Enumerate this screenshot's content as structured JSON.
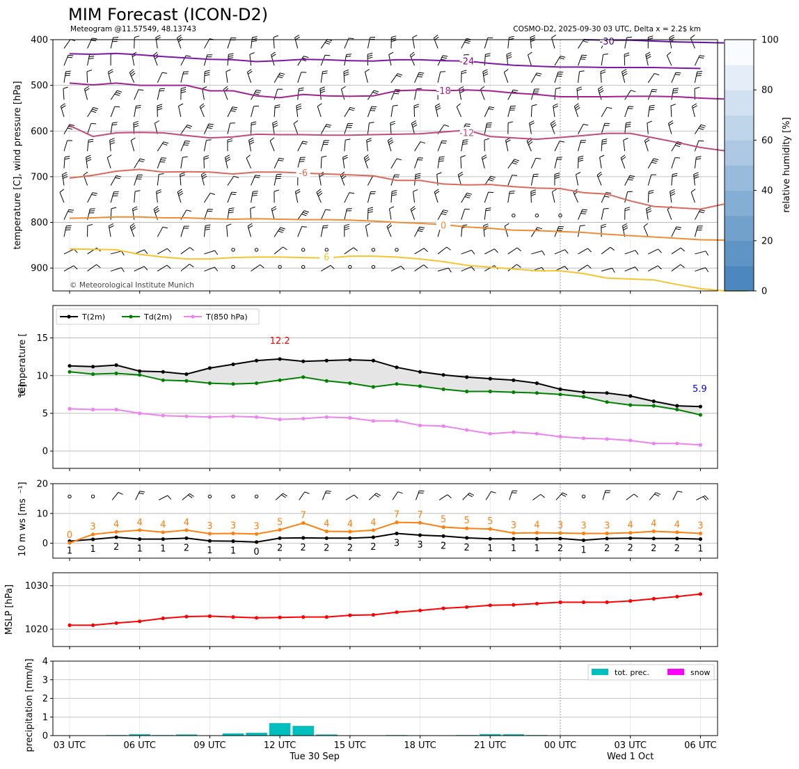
{
  "title": "MIM Forecast (ICON-D2)",
  "subtitle_left": "Meteogram @11.57549, 48.13743",
  "subtitle_right": "COSMO-D2, 2025-09-30 03 UTC, Delta x = 2.2$ km",
  "copyright": "© Meteorological Institute Munich",
  "time_labels": [
    "03 UTC",
    "06 UTC",
    "09 UTC",
    "12 UTC",
    "15 UTC",
    "18 UTC",
    "21 UTC",
    "00 UTC",
    "03 UTC",
    "06 UTC"
  ],
  "date_labels": [
    "Tue 30 Sep",
    "Wed 1 Oct"
  ],
  "colors": {
    "t2m": "#000000",
    "td2m": "#008000",
    "t850": "#ee82ee",
    "wind": "#ff7f0e",
    "mslp": "#ff0000",
    "prec": "#00bfbf",
    "snow": "#ff00ff"
  },
  "chart_data": [
    {
      "id": "upper_air",
      "type": "line",
      "ylabel": "temperature [C], wind pressure [hPa]",
      "ylim": [
        950,
        400
      ],
      "yticks": [
        "400",
        "500",
        "600",
        "700",
        "800",
        "900"
      ],
      "colorbar": {
        "label": "relative humidity [%]",
        "ticks": [
          "0",
          "20",
          "40",
          "60",
          "80",
          "100"
        ],
        "range": [
          0,
          100
        ]
      },
      "series": [
        {
          "name": "-30",
          "values": [
            null,
            null,
            null,
            null,
            null,
            null,
            null,
            null,
            null,
            null,
            null,
            null,
            null,
            null,
            null,
            null,
            null,
            null,
            null,
            null,
            null,
            null,
            400,
            401,
            401,
            403,
            405,
            406,
            407
          ]
        },
        {
          "name": "-24",
          "values": [
            431,
            432,
            430,
            433,
            437,
            440,
            443,
            444,
            448,
            446,
            443,
            444,
            446,
            447,
            444,
            444,
            446,
            447,
            452,
            456,
            458,
            460,
            460,
            461,
            461,
            461,
            462,
            463
          ]
        },
        {
          "name": "-18",
          "values": [
            495,
            499,
            495,
            500,
            500,
            500,
            512,
            512,
            523,
            527,
            520,
            523,
            524,
            523,
            512,
            510,
            512,
            510,
            512,
            517,
            520,
            525,
            525,
            525,
            524,
            524,
            525,
            528,
            530
          ]
        },
        {
          "name": "-12",
          "values": [
            588,
            612,
            604,
            603,
            604,
            610,
            615,
            613,
            607,
            608,
            608,
            609,
            609,
            608,
            607,
            606,
            602,
            598,
            612,
            615,
            618,
            614,
            610,
            605,
            605,
            615,
            625,
            636,
            643,
            628
          ]
        },
        {
          "name": "-6",
          "values": [
            703,
            697,
            688,
            684,
            690,
            689,
            690,
            694,
            690,
            690,
            692,
            694,
            696,
            698,
            708,
            708,
            716,
            718,
            717,
            722,
            725,
            726,
            735,
            738,
            753,
            765,
            768,
            771,
            760
          ]
        },
        {
          "name": "0",
          "values": [
            791,
            790,
            788,
            788,
            790,
            790,
            792,
            793,
            792,
            793,
            794,
            794,
            795,
            797,
            800,
            802,
            805,
            810,
            813,
            817,
            818,
            820,
            822,
            826,
            829,
            832,
            835,
            838,
            839,
            840
          ]
        },
        {
          "name": "6",
          "values": [
            858,
            859,
            860,
            870,
            876,
            880,
            880,
            877,
            876,
            876,
            877,
            878,
            874,
            874,
            876,
            880,
            886,
            894,
            898,
            902,
            906,
            906,
            912,
            922,
            924,
            926,
            936,
            945,
            950,
            950
          ]
        }
      ],
      "series_colors": [
        "#5b1596",
        "#7e17a6",
        "#a3208f",
        "#c14a7a",
        "#d96a5c",
        "#ef8c35",
        "#f6c42c"
      ],
      "label_colors": [
        "#4b0082",
        "#8b008b",
        "#a3208f",
        "#c14a7a",
        "#e06c4c",
        "#f48c2c",
        "#f6c42c"
      ]
    },
    {
      "id": "temperature",
      "type": "line",
      "ylabel": "temperature [$^\\circ$C]",
      "ylim": [
        -2.3,
        19.3
      ],
      "yticks": [
        0,
        5,
        10,
        15
      ],
      "legend": [
        "T(2m)",
        "Td(2m)",
        "T(850 hPa)"
      ],
      "annotations": [
        {
          "text": "12.2",
          "color": "#ff0000"
        },
        {
          "text": "5.9",
          "color": "#0000ff"
        }
      ],
      "series": [
        {
          "name": "T(2m)",
          "values": [
            11.3,
            11.2,
            11.4,
            10.6,
            10.5,
            10.2,
            11.0,
            11.5,
            12.0,
            12.2,
            11.9,
            12.0,
            12.1,
            12.0,
            11.1,
            10.5,
            10.1,
            9.8,
            9.6,
            9.4,
            9.0,
            8.2,
            7.8,
            7.7,
            7.3,
            6.6,
            6.0,
            5.9
          ]
        },
        {
          "name": "Td(2m)",
          "values": [
            10.5,
            10.2,
            10.3,
            10.1,
            9.4,
            9.3,
            9.0,
            8.9,
            9.0,
            9.4,
            9.8,
            9.3,
            9.0,
            8.5,
            8.9,
            8.6,
            8.2,
            7.9,
            7.9,
            7.8,
            7.7,
            7.5,
            7.2,
            6.5,
            6.1,
            6.0,
            5.5,
            4.8
          ]
        },
        {
          "name": "T(850 hPa)",
          "values": [
            5.6,
            5.5,
            5.5,
            5.0,
            4.7,
            4.6,
            4.5,
            4.6,
            4.5,
            4.2,
            4.3,
            4.5,
            4.4,
            4.0,
            4.0,
            3.4,
            3.3,
            2.8,
            2.3,
            2.5,
            2.3,
            1.9,
            1.7,
            1.6,
            1.4,
            1.0,
            1.0,
            0.8
          ]
        }
      ]
    },
    {
      "id": "wind10m",
      "type": "line",
      "ylabel": "10 m ws [ms$^{-1}$]",
      "ylim": [
        -5,
        20
      ],
      "yticks": [
        0,
        10,
        20
      ],
      "series": [
        {
          "name": "ws",
          "values": [
            0.7,
            1.3,
            2.0,
            1.4,
            1.4,
            1.7,
            0.8,
            0.7,
            0.4,
            1.7,
            1.8,
            1.7,
            1.7,
            2.0,
            3.3,
            2.7,
            2.4,
            1.8,
            1.5,
            1.5,
            1.5,
            1.6,
            1.0,
            1.6,
            1.7,
            1.6,
            1.6,
            1.4
          ]
        },
        {
          "name": "gust",
          "values": [
            0.1,
            3.0,
            3.8,
            4.4,
            3.7,
            4.4,
            3.2,
            3.3,
            3.1,
            4.5,
            6.8,
            4.0,
            3.9,
            4.4,
            7.0,
            6.9,
            5.4,
            5.0,
            4.8,
            3.4,
            3.5,
            3.4,
            3.3,
            3.3,
            3.5,
            4.0,
            3.7,
            3.3
          ]
        }
      ],
      "gust_labels": [
        "0",
        "3",
        "4",
        "4",
        "4",
        "4",
        "3",
        "3",
        "3",
        "5",
        "7",
        "4",
        "4",
        "4",
        "7",
        "7",
        "5",
        "5",
        "5",
        "3",
        "4",
        "3",
        "3",
        "3",
        "4",
        "4",
        "4",
        "3"
      ],
      "ws_labels": [
        "1",
        "1",
        "2",
        "1",
        "1",
        "2",
        "1",
        "1",
        "0",
        "2",
        "2",
        "2",
        "2",
        "2",
        "3",
        "3",
        "2",
        "2",
        "1",
        "1",
        "1",
        "2",
        "1",
        "2",
        "2",
        "2",
        "2",
        "1"
      ]
    },
    {
      "id": "mslp",
      "type": "line",
      "ylabel": "MSLP [hPa]",
      "ylim": [
        1016,
        1033
      ],
      "yticks": [
        1020,
        1030
      ],
      "series": [
        {
          "name": "MSLP",
          "values": [
            1020.9,
            1020.9,
            1021.4,
            1021.8,
            1022.5,
            1022.9,
            1023.0,
            1022.8,
            1022.6,
            1022.7,
            1022.8,
            1022.8,
            1023.2,
            1023.3,
            1023.9,
            1024.3,
            1024.8,
            1025.1,
            1025.5,
            1025.6,
            1025.9,
            1026.2,
            1026.2,
            1026.2,
            1026.5,
            1027.0,
            1027.5,
            1028.1
          ]
        }
      ]
    },
    {
      "id": "precipitation",
      "type": "bar",
      "ylabel": "precipitation [mm/h]",
      "ylim": [
        0,
        4
      ],
      "yticks": [
        0,
        1,
        2,
        3,
        4
      ],
      "legend": [
        "tot. prec.",
        "snow"
      ],
      "series": [
        {
          "name": "tot. prec.",
          "values": [
            0,
            0.02,
            0.03,
            0.07,
            0.03,
            0.06,
            0,
            0.12,
            0.15,
            0.67,
            0.52,
            0.06,
            0,
            0,
            0.03,
            0,
            0,
            0.03,
            0.08,
            0.07,
            0.03,
            0,
            0,
            0,
            0,
            0,
            0,
            0
          ]
        },
        {
          "name": "snow",
          "values": [
            0,
            0,
            0,
            0,
            0,
            0,
            0,
            0,
            0,
            0,
            0,
            0,
            0,
            0,
            0,
            0,
            0,
            0,
            0,
            0,
            0,
            0,
            0,
            0,
            0,
            0,
            0,
            0
          ]
        }
      ]
    }
  ]
}
